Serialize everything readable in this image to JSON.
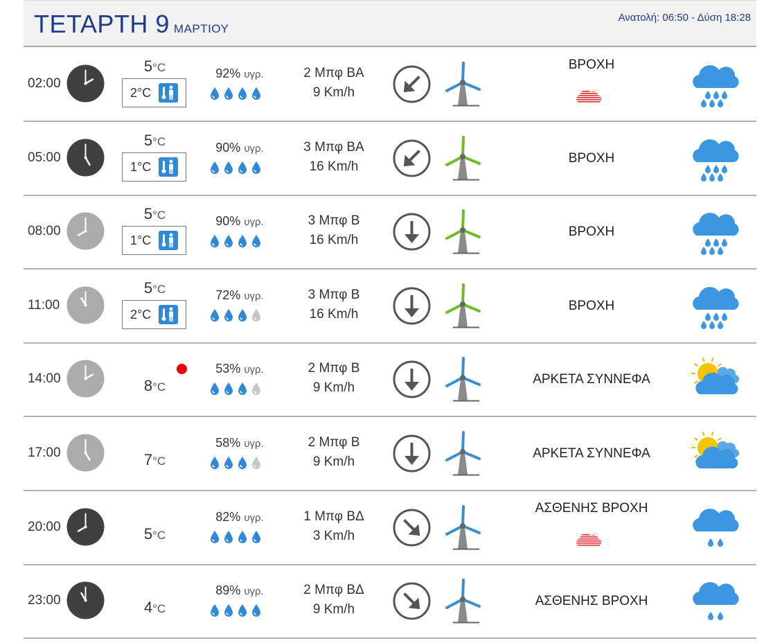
{
  "header": {
    "day": "ΤΕΤΑΡΤΗ 9",
    "month": "ΜΑΡΤΙΟΥ",
    "sun": "Ανατολή: 06:50  - Δύση 18:28"
  },
  "units": {
    "temp": "°C",
    "humidity": "υγρ."
  },
  "colors": {
    "title": "#1f3a8a",
    "drop_full": "#2f89d7",
    "drop_empty": "#bfc8d0",
    "blade_blue": "#3a8fd0",
    "blade_green": "#6cbf2a",
    "clock_dark": "#404040",
    "clock_light": "#ababab"
  },
  "rows": [
    {
      "time": "02:00",
      "clock": "dark",
      "temp": "5",
      "feels": "2°C",
      "humidity": "92%",
      "drops": 4,
      "beaufort": "2 Μπφ ΒΑ",
      "speed": "9 Km/h",
      "direction": "northeast",
      "blade": "blue",
      "condition": "ΒΡΟΧΗ",
      "fog": true,
      "icon": "rain-heavy-icon"
    },
    {
      "time": "05:00",
      "clock": "dark",
      "temp": "5",
      "feels": "1°C",
      "humidity": "90%",
      "drops": 4,
      "beaufort": "3 Μπφ ΒΑ",
      "speed": "16 Km/h",
      "direction": "northeast",
      "blade": "green",
      "condition": "ΒΡΟΧΗ",
      "fog": false,
      "icon": "rain-heavy-icon"
    },
    {
      "time": "08:00",
      "clock": "light",
      "temp": "5",
      "feels": "1°C",
      "humidity": "90%",
      "drops": 4,
      "beaufort": "3 Μπφ Β",
      "speed": "16 Km/h",
      "direction": "north",
      "blade": "green",
      "condition": "ΒΡΟΧΗ",
      "fog": false,
      "icon": "rain-heavy-icon"
    },
    {
      "time": "11:00",
      "clock": "light",
      "temp": "5",
      "feels": "2°C",
      "humidity": "72%",
      "drops": 3,
      "beaufort": "3 Μπφ Β",
      "speed": "16 Km/h",
      "direction": "north",
      "blade": "green",
      "condition": "ΒΡΟΧΗ",
      "fog": false,
      "icon": "rain-heavy-icon"
    },
    {
      "time": "14:00",
      "clock": "light",
      "temp": "8",
      "feels": "",
      "hot": true,
      "humidity": "53%",
      "drops": 3,
      "beaufort": "2 Μπφ Β",
      "speed": "9 Km/h",
      "direction": "north",
      "blade": "blue",
      "condition": "ΑΡΚΕΤΑ ΣΥΝΝΕΦΑ",
      "fog": false,
      "icon": "partly-cloudy-icon"
    },
    {
      "time": "17:00",
      "clock": "light",
      "temp": "7",
      "feels": "",
      "humidity": "58%",
      "drops": 3,
      "beaufort": "2 Μπφ Β",
      "speed": "9 Km/h",
      "direction": "north",
      "blade": "blue",
      "condition": "ΑΡΚΕΤΑ ΣΥΝΝΕΦΑ",
      "fog": false,
      "icon": "partly-cloudy-icon"
    },
    {
      "time": "20:00",
      "clock": "dark",
      "temp": "5",
      "feels": "",
      "humidity": "82%",
      "drops": 4,
      "beaufort": "1 Μπφ ΒΔ",
      "speed": "3 Km/h",
      "direction": "northwest",
      "blade": "blue",
      "condition": "ΑΣΘΕΝΗΣ ΒΡΟΧΗ",
      "fog": true,
      "icon": "rain-light-icon"
    },
    {
      "time": "23:00",
      "clock": "dark",
      "temp": "4",
      "feels": "",
      "humidity": "89%",
      "drops": 4,
      "beaufort": "2 Μπφ ΒΔ",
      "speed": "9 Km/h",
      "direction": "northwest",
      "blade": "blue",
      "condition": "ΑΣΘΕΝΗΣ ΒΡΟΧΗ",
      "fog": false,
      "icon": "rain-light-icon"
    }
  ]
}
